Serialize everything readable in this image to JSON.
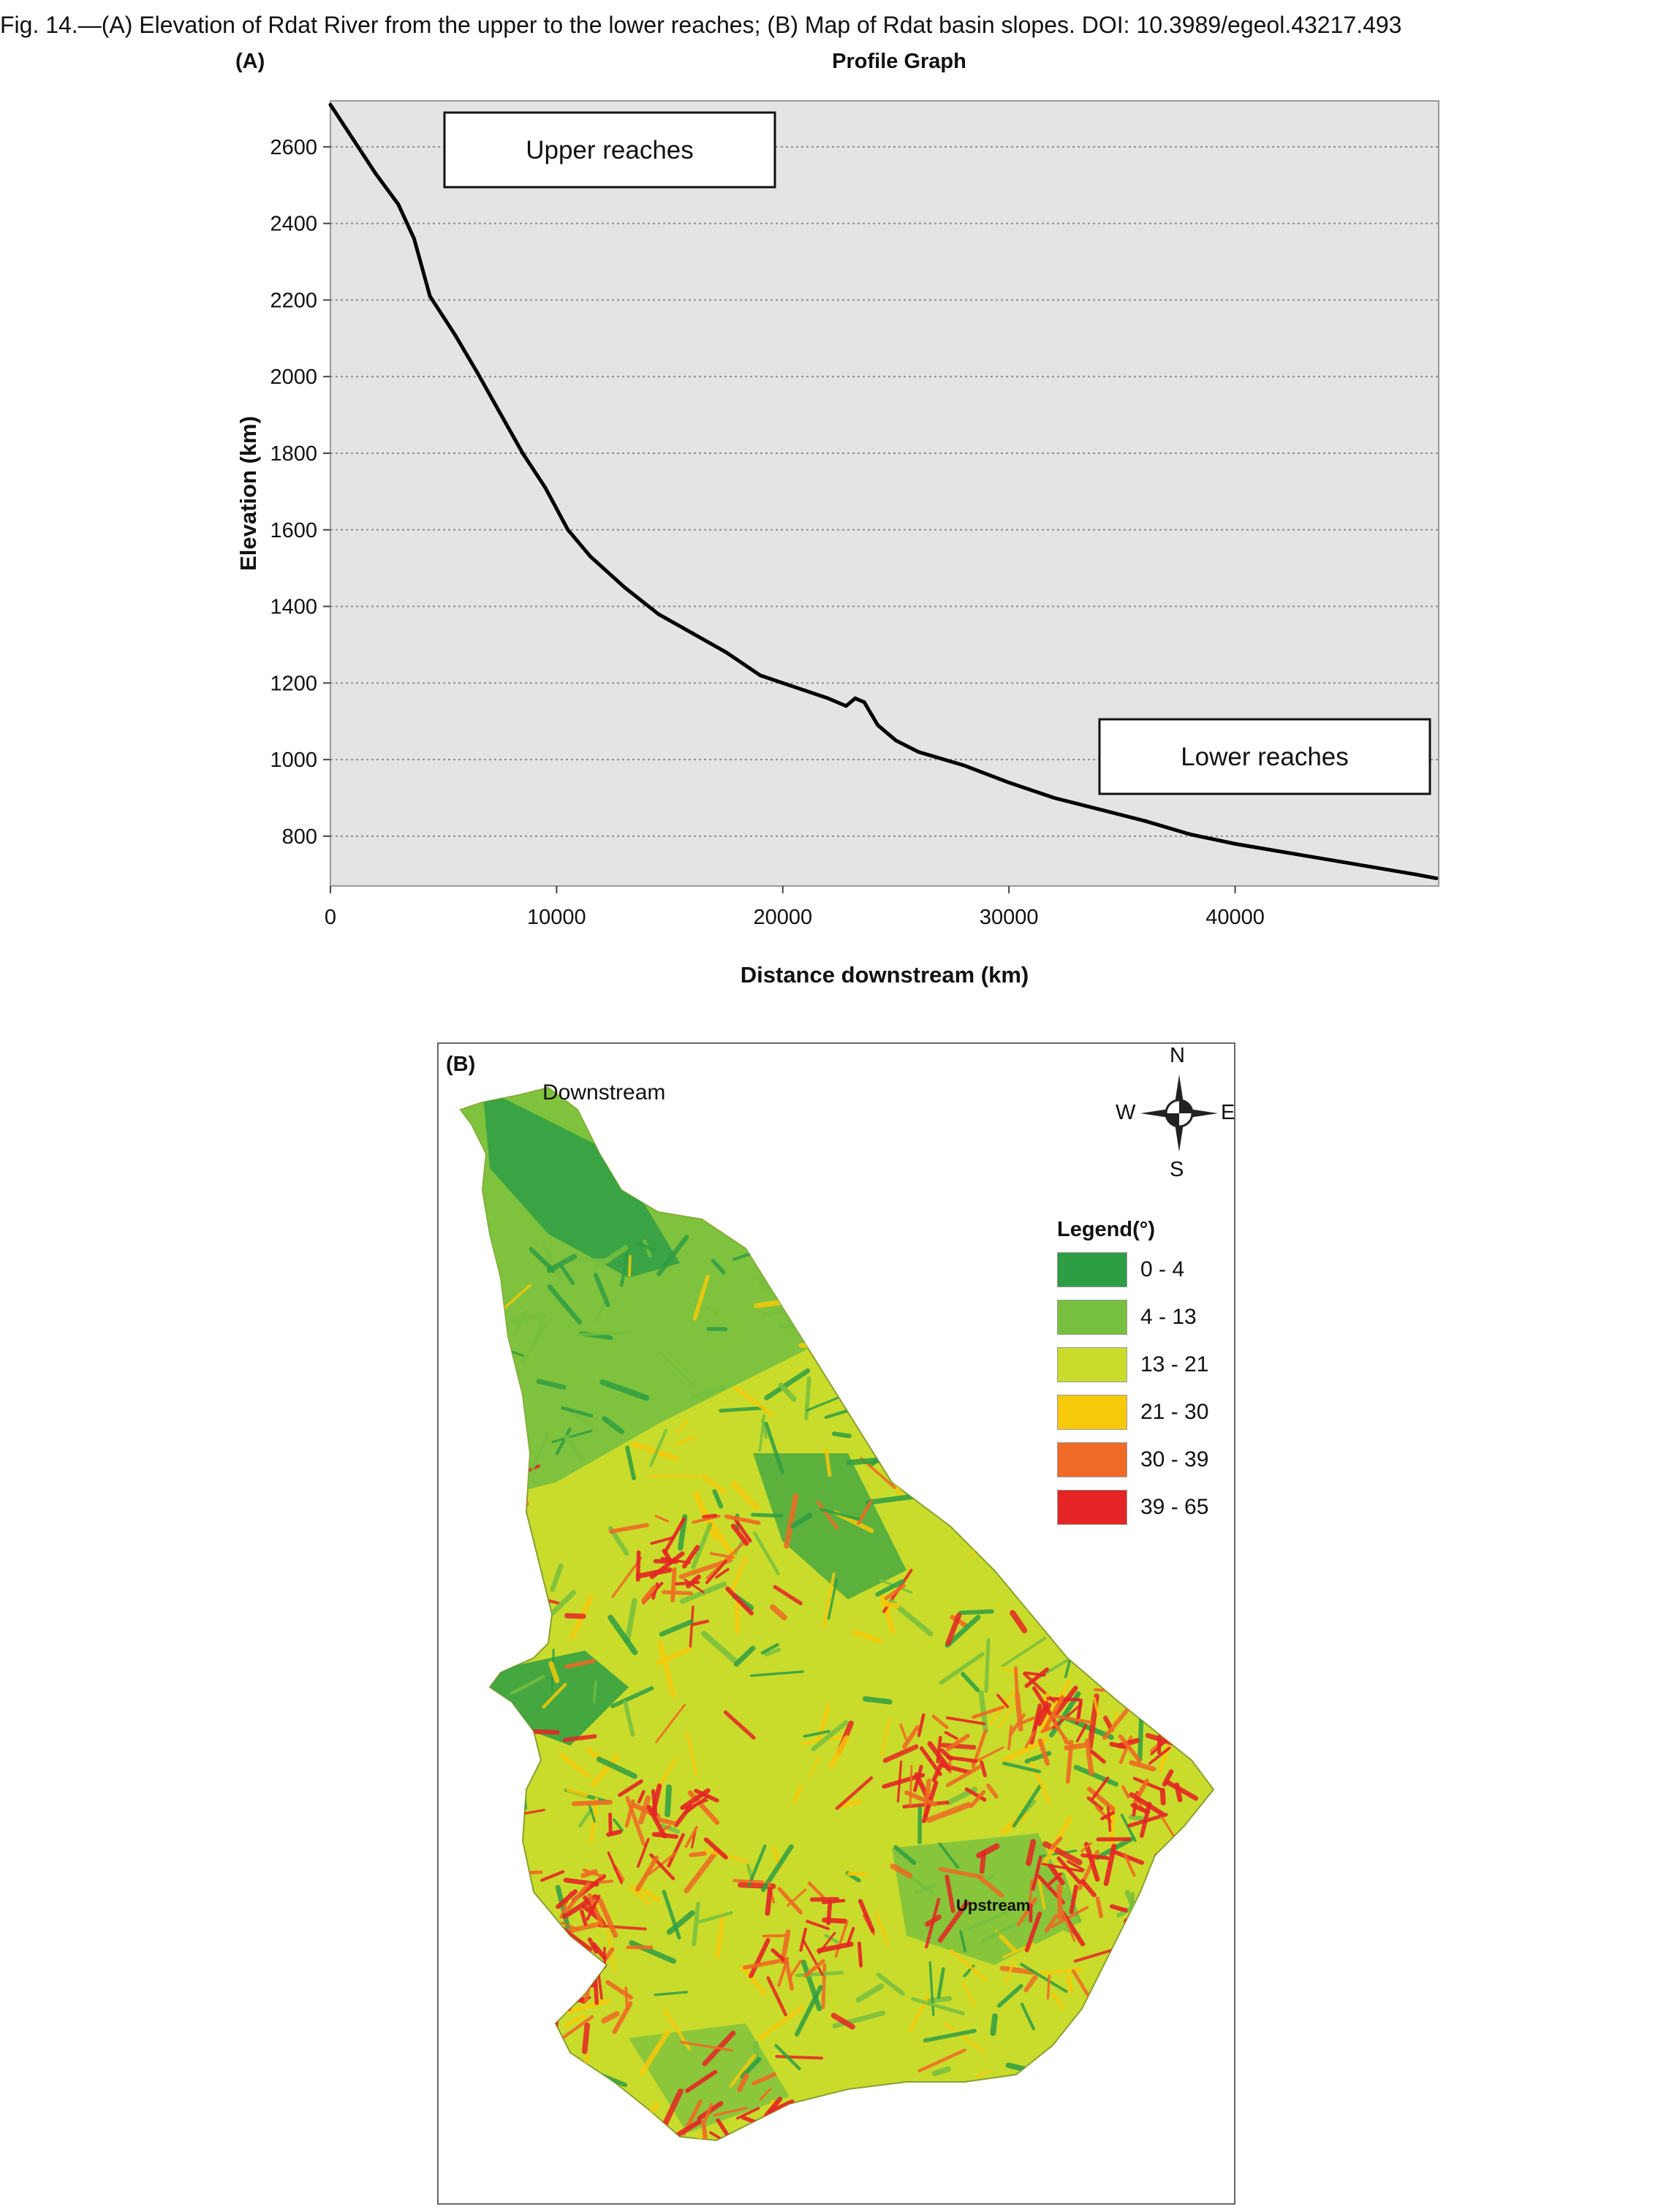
{
  "caption": "Fig. 14.—(A) Elevation of Rdat River from the upper to the lower reaches; (B) Map of Rdat basin slopes. DOI: 10.3989/egeol.43217.493",
  "panel_a": {
    "label": "(A)"
  },
  "panel_b": {
    "label": "(B)"
  },
  "chart_data": {
    "type": "line",
    "title": "Profile Graph",
    "xlabel": "Distance downstream (km)",
    "ylabel": "Elevation (km)",
    "xlim": [
      0,
      49000
    ],
    "ylim": [
      670,
      2720
    ],
    "xticks": [
      0,
      10000,
      20000,
      30000,
      40000
    ],
    "yticks": [
      800,
      1000,
      1200,
      1400,
      1600,
      1800,
      2000,
      2200,
      2400,
      2600
    ],
    "grid": "horizontal dotted",
    "series": [
      {
        "color": "#000000",
        "x": [
          0,
          1000,
          2000,
          3000,
          3700,
          4400,
          5500,
          6500,
          7500,
          8500,
          9500,
          10500,
          11500,
          13000,
          14500,
          16000,
          17500,
          19000,
          20000,
          21000,
          22000,
          22800,
          23200,
          23600,
          24200,
          25000,
          26000,
          28000,
          30000,
          32000,
          34000,
          36000,
          38000,
          40000,
          42000,
          44000,
          46000,
          48000,
          48900
        ],
        "y": [
          2710,
          2620,
          2530,
          2450,
          2360,
          2210,
          2110,
          2010,
          1905,
          1800,
          1710,
          1600,
          1530,
          1450,
          1380,
          1330,
          1280,
          1220,
          1200,
          1180,
          1160,
          1140,
          1160,
          1150,
          1090,
          1050,
          1020,
          985,
          940,
          900,
          870,
          840,
          805,
          780,
          760,
          740,
          720,
          700,
          690
        ]
      }
    ],
    "annotations": [
      {
        "text": "Upper reaches"
      },
      {
        "text": "Lower reaches"
      }
    ]
  },
  "map": {
    "downstream_label": "Downstream",
    "upstream_label": "Upstream",
    "compass": {
      "n": "N",
      "s": "S",
      "e": "E",
      "w": "W"
    },
    "legend": {
      "title": "Legend(°)",
      "items": [
        {
          "label": "0 - 4",
          "color": "#2e9e44"
        },
        {
          "label": "4 - 13",
          "color": "#77bf3f"
        },
        {
          "label": "13 - 21",
          "color": "#c9dc2c"
        },
        {
          "label": "21 - 30",
          "color": "#f6c90a"
        },
        {
          "label": "30 - 39",
          "color": "#ef6a24"
        },
        {
          "label": "39 - 65",
          "color": "#e52525"
        }
      ]
    }
  }
}
